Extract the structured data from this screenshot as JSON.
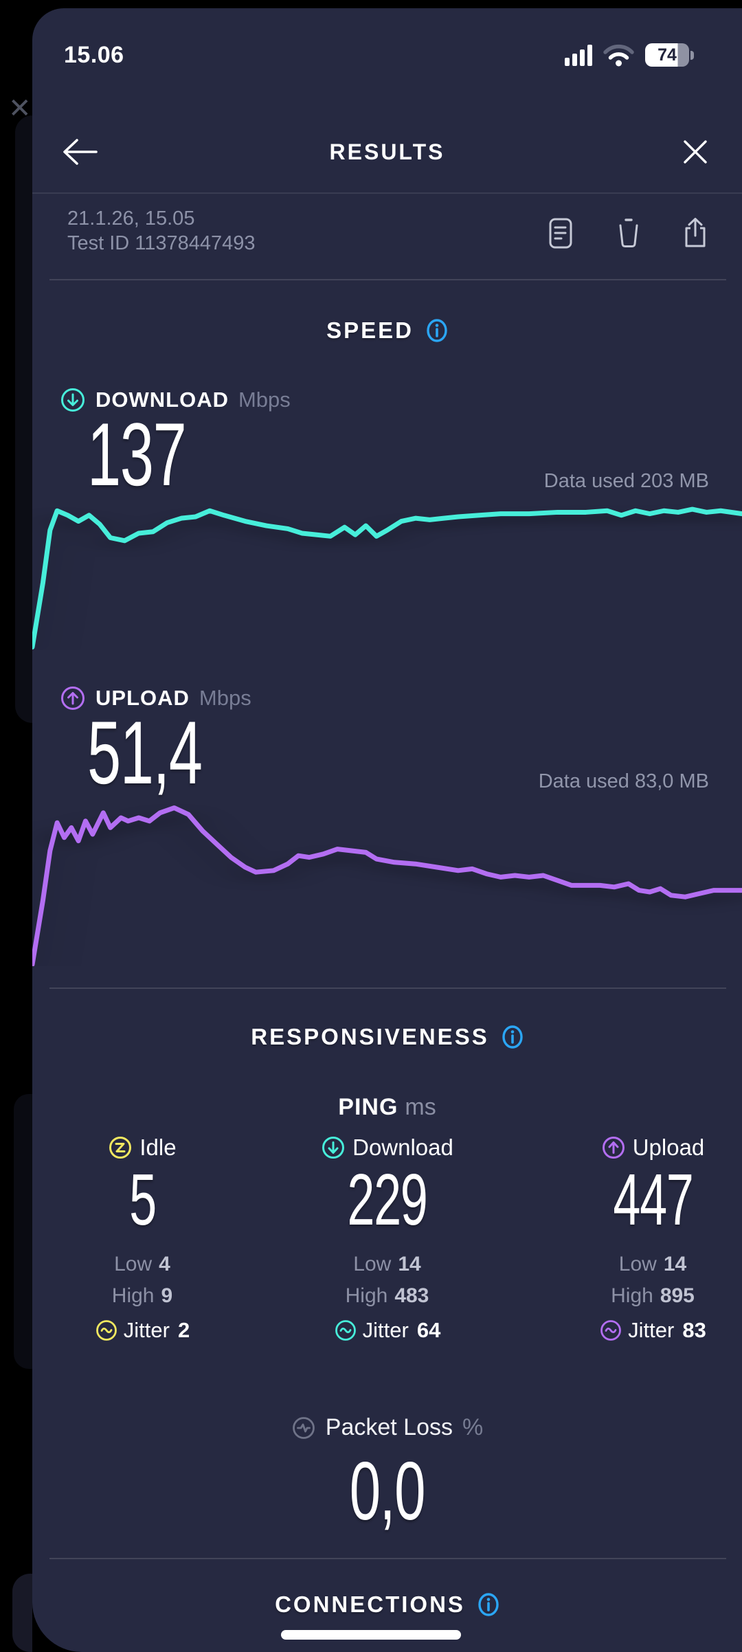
{
  "status_bar": {
    "time": "15.06",
    "battery_percent": "74"
  },
  "header": {
    "title": "RESULTS"
  },
  "meta": {
    "datetime": "21.1.26, 15.05",
    "test_id": "Test ID 11378447493"
  },
  "speed": {
    "title": "SPEED",
    "download": {
      "label": "DOWNLOAD",
      "unit": "Mbps",
      "value": "137",
      "data_used": "Data used 203 MB"
    },
    "upload": {
      "label": "UPLOAD",
      "unit": "Mbps",
      "value": "51,4",
      "data_used": "Data used 83,0 MB"
    }
  },
  "responsiveness": {
    "title": "RESPONSIVENESS",
    "ping_label": "PING",
    "ping_unit": "ms",
    "columns": [
      {
        "name": "Idle",
        "value": "5",
        "low_label": "Low",
        "low": "4",
        "high_label": "High",
        "high": "9",
        "jitter_label": "Jitter",
        "jitter": "2",
        "color": "#f2e860"
      },
      {
        "name": "Download",
        "value": "229",
        "low_label": "Low",
        "low": "14",
        "high_label": "High",
        "high": "483",
        "jitter_label": "Jitter",
        "jitter": "64",
        "color": "#47eeda"
      },
      {
        "name": "Upload",
        "value": "447",
        "low_label": "Low",
        "low": "14",
        "high_label": "High",
        "high": "895",
        "jitter_label": "Jitter",
        "jitter": "83",
        "color": "#b36ef2"
      }
    ]
  },
  "packet_loss": {
    "label": "Packet Loss",
    "unit": "%",
    "value": "0,0"
  },
  "connections": {
    "title": "CONNECTIONS"
  },
  "colors": {
    "sheet_background": "#262941",
    "behind_background": "#000000",
    "download_accent": "#47eeda",
    "upload_accent": "#b36ef2",
    "idle_accent": "#f2e860",
    "info_blue": "#2ba6f5",
    "muted_text": "#8d92a8",
    "bright_value_text": "#c0c3d2"
  },
  "icons": {
    "back": "arrow-left",
    "close": "x",
    "result_detail": "document-lines",
    "delete": "trash",
    "share": "square-arrow-up",
    "info": "circle-i",
    "download": "circle-arrow-down",
    "upload": "circle-arrow-up",
    "idle": "circle-bolt",
    "jitter": "circle-wave",
    "packet_loss": "circle-pulse",
    "cellular": "signal-bars-4",
    "wifi": "wifi-arcs-2of3",
    "battery": "battery-74"
  },
  "chart_data": [
    {
      "type": "line",
      "name": "Download speed over time",
      "unit": "Mbps",
      "result_value": 137,
      "data_used_mb": 203,
      "color": "#47eeda",
      "x_axis": "test time, normalized 0-100 % (axis unlabeled in app)",
      "y_axis": "instantaneous speed as % of chart max (axis unlabeled in app)",
      "points": [
        [
          0,
          2
        ],
        [
          1.5,
          45
        ],
        [
          2.5,
          80
        ],
        [
          3.5,
          93
        ],
        [
          5,
          90
        ],
        [
          6.5,
          86
        ],
        [
          8,
          90
        ],
        [
          9.5,
          84
        ],
        [
          11,
          75
        ],
        [
          13,
          73
        ],
        [
          15,
          78
        ],
        [
          17,
          79
        ],
        [
          19,
          85
        ],
        [
          21,
          88
        ],
        [
          23,
          89
        ],
        [
          25,
          93
        ],
        [
          27,
          90
        ],
        [
          30,
          86
        ],
        [
          33,
          83
        ],
        [
          36,
          81
        ],
        [
          38,
          78
        ],
        [
          40,
          77
        ],
        [
          42,
          76
        ],
        [
          44,
          82
        ],
        [
          45.5,
          77
        ],
        [
          47,
          83
        ],
        [
          48.5,
          76
        ],
        [
          50,
          80
        ],
        [
          52,
          86
        ],
        [
          54,
          88
        ],
        [
          56,
          87
        ],
        [
          58,
          88
        ],
        [
          60,
          89
        ],
        [
          63,
          90
        ],
        [
          66,
          91
        ],
        [
          70,
          91
        ],
        [
          74,
          92
        ],
        [
          78,
          92
        ],
        [
          81,
          93
        ],
        [
          83,
          90
        ],
        [
          85,
          93
        ],
        [
          87,
          91
        ],
        [
          89,
          93
        ],
        [
          91,
          92
        ],
        [
          93,
          94
        ],
        [
          95,
          92
        ],
        [
          97,
          93
        ],
        [
          100,
          91
        ]
      ]
    },
    {
      "type": "line",
      "name": "Upload speed over time",
      "unit": "Mbps",
      "result_value": 51.4,
      "data_used_mb": 83.0,
      "color": "#b36ef2",
      "x_axis": "test time, normalized 0-100 % (axis unlabeled in app)",
      "y_axis": "instantaneous speed as % of chart max (axis unlabeled in app)",
      "points": [
        [
          0,
          1
        ],
        [
          1.5,
          40
        ],
        [
          2.5,
          70
        ],
        [
          3.5,
          87
        ],
        [
          4.5,
          78
        ],
        [
          5.5,
          84
        ],
        [
          6.5,
          76
        ],
        [
          7.5,
          88
        ],
        [
          8.5,
          80
        ],
        [
          10,
          93
        ],
        [
          11,
          84
        ],
        [
          12.5,
          90
        ],
        [
          13.5,
          88
        ],
        [
          15,
          90
        ],
        [
          16.5,
          88
        ],
        [
          18,
          93
        ],
        [
          20,
          96
        ],
        [
          22,
          92
        ],
        [
          24,
          82
        ],
        [
          26,
          74
        ],
        [
          28,
          66
        ],
        [
          30,
          60
        ],
        [
          31.5,
          57
        ],
        [
          34,
          58
        ],
        [
          36,
          62
        ],
        [
          37.5,
          67
        ],
        [
          39,
          66
        ],
        [
          41,
          68
        ],
        [
          43,
          71
        ],
        [
          45,
          70
        ],
        [
          47,
          69
        ],
        [
          48.5,
          65
        ],
        [
          51,
          63
        ],
        [
          54,
          62
        ],
        [
          57,
          60
        ],
        [
          60,
          58
        ],
        [
          62,
          59
        ],
        [
          64,
          56
        ],
        [
          66,
          54
        ],
        [
          68,
          55
        ],
        [
          70,
          54
        ],
        [
          72,
          55
        ],
        [
          74,
          52
        ],
        [
          76,
          49
        ],
        [
          78,
          49
        ],
        [
          80,
          49
        ],
        [
          82,
          48
        ],
        [
          84,
          50
        ],
        [
          85.5,
          46
        ],
        [
          87,
          45
        ],
        [
          88.5,
          47
        ],
        [
          90,
          43
        ],
        [
          92,
          42
        ],
        [
          94,
          44
        ],
        [
          96,
          46
        ],
        [
          98,
          46
        ],
        [
          100,
          46
        ]
      ]
    }
  ]
}
